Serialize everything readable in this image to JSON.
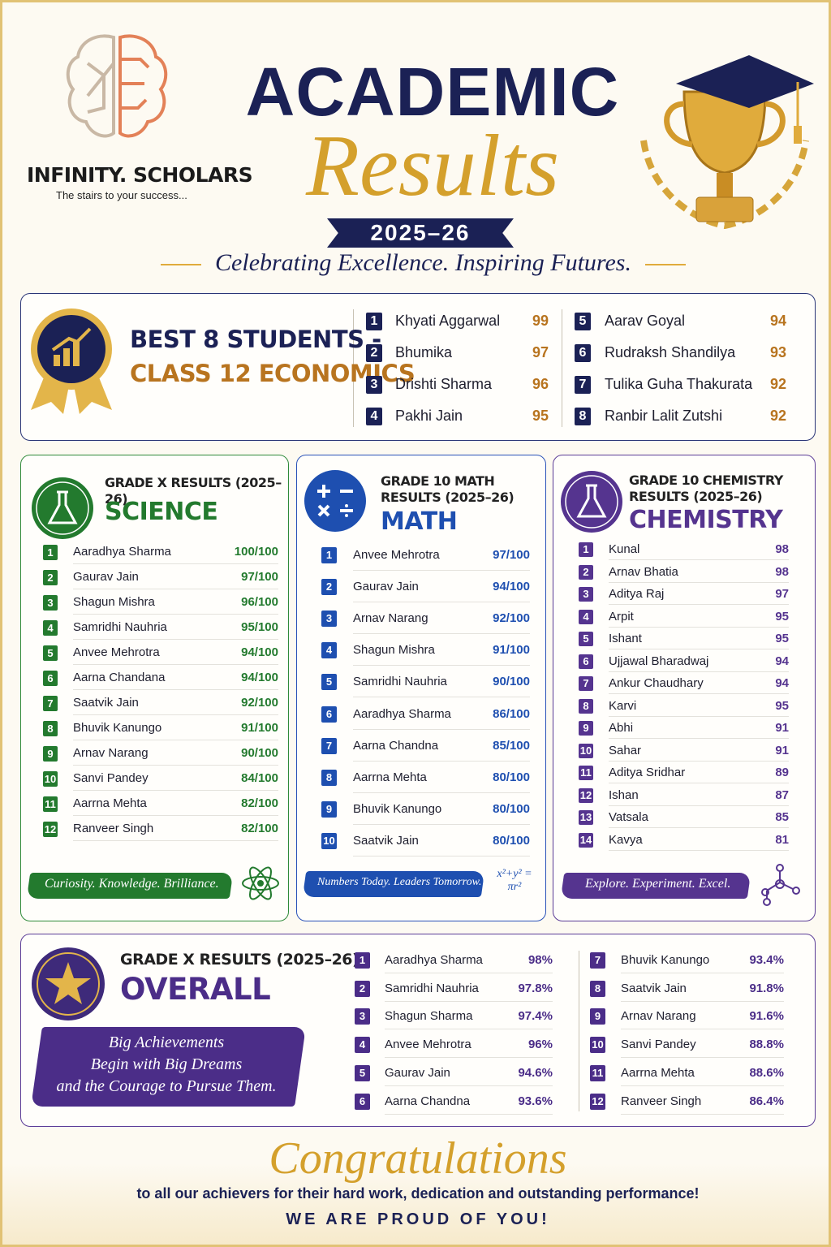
{
  "header": {
    "brand": "INFINITY. SCHOLARS",
    "tagline": "The stairs to your success...",
    "title_line1": "ACADEMIC",
    "title_line2": "Results",
    "year": "2025–26",
    "subtitle": "Celebrating Excellence. Inspiring Futures."
  },
  "best8": {
    "heading_line1": "BEST 8 STUDENTS -",
    "heading_line2": "CLASS 12 ECONOMICS",
    "rows": [
      {
        "rank": "1",
        "name": "Khyati Aggarwal",
        "score": "99"
      },
      {
        "rank": "2",
        "name": "Bhumika",
        "score": "97"
      },
      {
        "rank": "3",
        "name": "Drishti Sharma",
        "score": "96"
      },
      {
        "rank": "4",
        "name": "Pakhi Jain",
        "score": "95"
      },
      {
        "rank": "5",
        "name": "Aarav Goyal",
        "score": "94"
      },
      {
        "rank": "6",
        "name": "Rudraksh Shandilya",
        "score": "93"
      },
      {
        "rank": "7",
        "name": "Tulika Guha Thakurata",
        "score": "92"
      },
      {
        "rank": "8",
        "name": "Ranbir Lalit Zutshi",
        "score": "92"
      }
    ]
  },
  "science": {
    "caption": "GRADE X RESULTS (2025–26)",
    "subject": "SCIENCE",
    "rows": [
      {
        "rank": "1",
        "name": "Aaradhya Sharma",
        "score": "100/100"
      },
      {
        "rank": "2",
        "name": "Gaurav Jain",
        "score": "97/100"
      },
      {
        "rank": "3",
        "name": "Shagun Mishra",
        "score": "96/100"
      },
      {
        "rank": "4",
        "name": "Samridhi Nauhria",
        "score": "95/100"
      },
      {
        "rank": "5",
        "name": "Anvee Mehrotra",
        "score": "94/100"
      },
      {
        "rank": "6",
        "name": "Aarna Chandana",
        "score": "94/100"
      },
      {
        "rank": "7",
        "name": "Saatvik Jain",
        "score": "92/100"
      },
      {
        "rank": "8",
        "name": "Bhuvik Kanungo",
        "score": "91/100"
      },
      {
        "rank": "9",
        "name": "Arnav Narang",
        "score": "90/100"
      },
      {
        "rank": "10",
        "name": "Sanvi Pandey",
        "score": "84/100"
      },
      {
        "rank": "11",
        "name": "Aarrna Mehta",
        "score": "82/100"
      },
      {
        "rank": "12",
        "name": "Ranveer Singh",
        "score": "82/100"
      }
    ],
    "motto": "Curiosity. Knowledge. Brilliance."
  },
  "math": {
    "caption": "GRADE 10 MATH RESULTS (2025–26)",
    "subject": "MATH",
    "rows": [
      {
        "rank": "1",
        "name": "Anvee Mehrotra",
        "score": "97/100"
      },
      {
        "rank": "2",
        "name": "Gaurav Jain",
        "score": "94/100"
      },
      {
        "rank": "3",
        "name": "Arnav Narang",
        "score": "92/100"
      },
      {
        "rank": "4",
        "name": "Shagun Mishra",
        "score": "91/100"
      },
      {
        "rank": "5",
        "name": "Samridhi Nauhria",
        "score": "90/100"
      },
      {
        "rank": "6",
        "name": "Aaradhya Sharma",
        "score": "86/100"
      },
      {
        "rank": "7",
        "name": "Aarna Chandna",
        "score": "85/100"
      },
      {
        "rank": "8",
        "name": "Aarrna Mehta",
        "score": "80/100"
      },
      {
        "rank": "9",
        "name": "Bhuvik Kanungo",
        "score": "80/100"
      },
      {
        "rank": "10",
        "name": "Saatvik Jain",
        "score": "80/100"
      }
    ],
    "motto": "Numbers Today. Leaders Tomorrow.",
    "formula": "x²+y² = πr²"
  },
  "chemistry": {
    "caption": "GRADE 10 CHEMISTRY RESULTS (2025–26)",
    "subject": "CHEMISTRY",
    "rows": [
      {
        "rank": "1",
        "name": "Kunal",
        "score": "98"
      },
      {
        "rank": "2",
        "name": "Arnav Bhatia",
        "score": "98"
      },
      {
        "rank": "3",
        "name": "Aditya Raj",
        "score": "97"
      },
      {
        "rank": "4",
        "name": "Arpit",
        "score": "95"
      },
      {
        "rank": "5",
        "name": "Ishant",
        "score": "95"
      },
      {
        "rank": "6",
        "name": "Ujjawal Bharadwaj",
        "score": "94"
      },
      {
        "rank": "7",
        "name": "Ankur Chaudhary",
        "score": "94"
      },
      {
        "rank": "8",
        "name": "Karvi",
        "score": "95"
      },
      {
        "rank": "9",
        "name": "Abhi",
        "score": "91"
      },
      {
        "rank": "10",
        "name": "Sahar",
        "score": "91"
      },
      {
        "rank": "11",
        "name": "Aditya Sridhar",
        "score": "89"
      },
      {
        "rank": "12",
        "name": "Ishan",
        "score": "87"
      },
      {
        "rank": "13",
        "name": "Vatsala",
        "score": "85"
      },
      {
        "rank": "14",
        "name": "Kavya",
        "score": "81"
      }
    ],
    "motto": "Explore. Experiment. Excel."
  },
  "overall": {
    "caption": "GRADE X RESULTS (2025–26)",
    "subject": "OVERALL",
    "quote_lines": [
      "Big Achievements",
      "Begin with Big Dreams",
      "and the Courage to Pursue Them."
    ],
    "rows": [
      {
        "rank": "1",
        "name": "Aaradhya Sharma",
        "score": "98%"
      },
      {
        "rank": "2",
        "name": "Samridhi Nauhria",
        "score": "97.8%"
      },
      {
        "rank": "3",
        "name": "Shagun Sharma",
        "score": "97.4%"
      },
      {
        "rank": "4",
        "name": "Anvee Mehrotra",
        "score": "96%"
      },
      {
        "rank": "5",
        "name": "Gaurav Jain",
        "score": "94.6%"
      },
      {
        "rank": "6",
        "name": "Aarna Chandna",
        "score": "93.6%"
      },
      {
        "rank": "7",
        "name": "Bhuvik Kanungo",
        "score": "93.4%"
      },
      {
        "rank": "8",
        "name": "Saatvik Jain",
        "score": "91.8%"
      },
      {
        "rank": "9",
        "name": "Arnav Narang",
        "score": "91.6%"
      },
      {
        "rank": "10",
        "name": "Sanvi Pandey",
        "score": "88.8%"
      },
      {
        "rank": "11",
        "name": "Aarrna Mehta",
        "score": "88.6%"
      },
      {
        "rank": "12",
        "name": "Ranveer Singh",
        "score": "86.4%"
      }
    ]
  },
  "footer": {
    "congrats": "Congratulations",
    "message": "to all our achievers for their hard work, dedication and outstanding performance!",
    "proud": "WE ARE PROUD OF YOU!"
  }
}
